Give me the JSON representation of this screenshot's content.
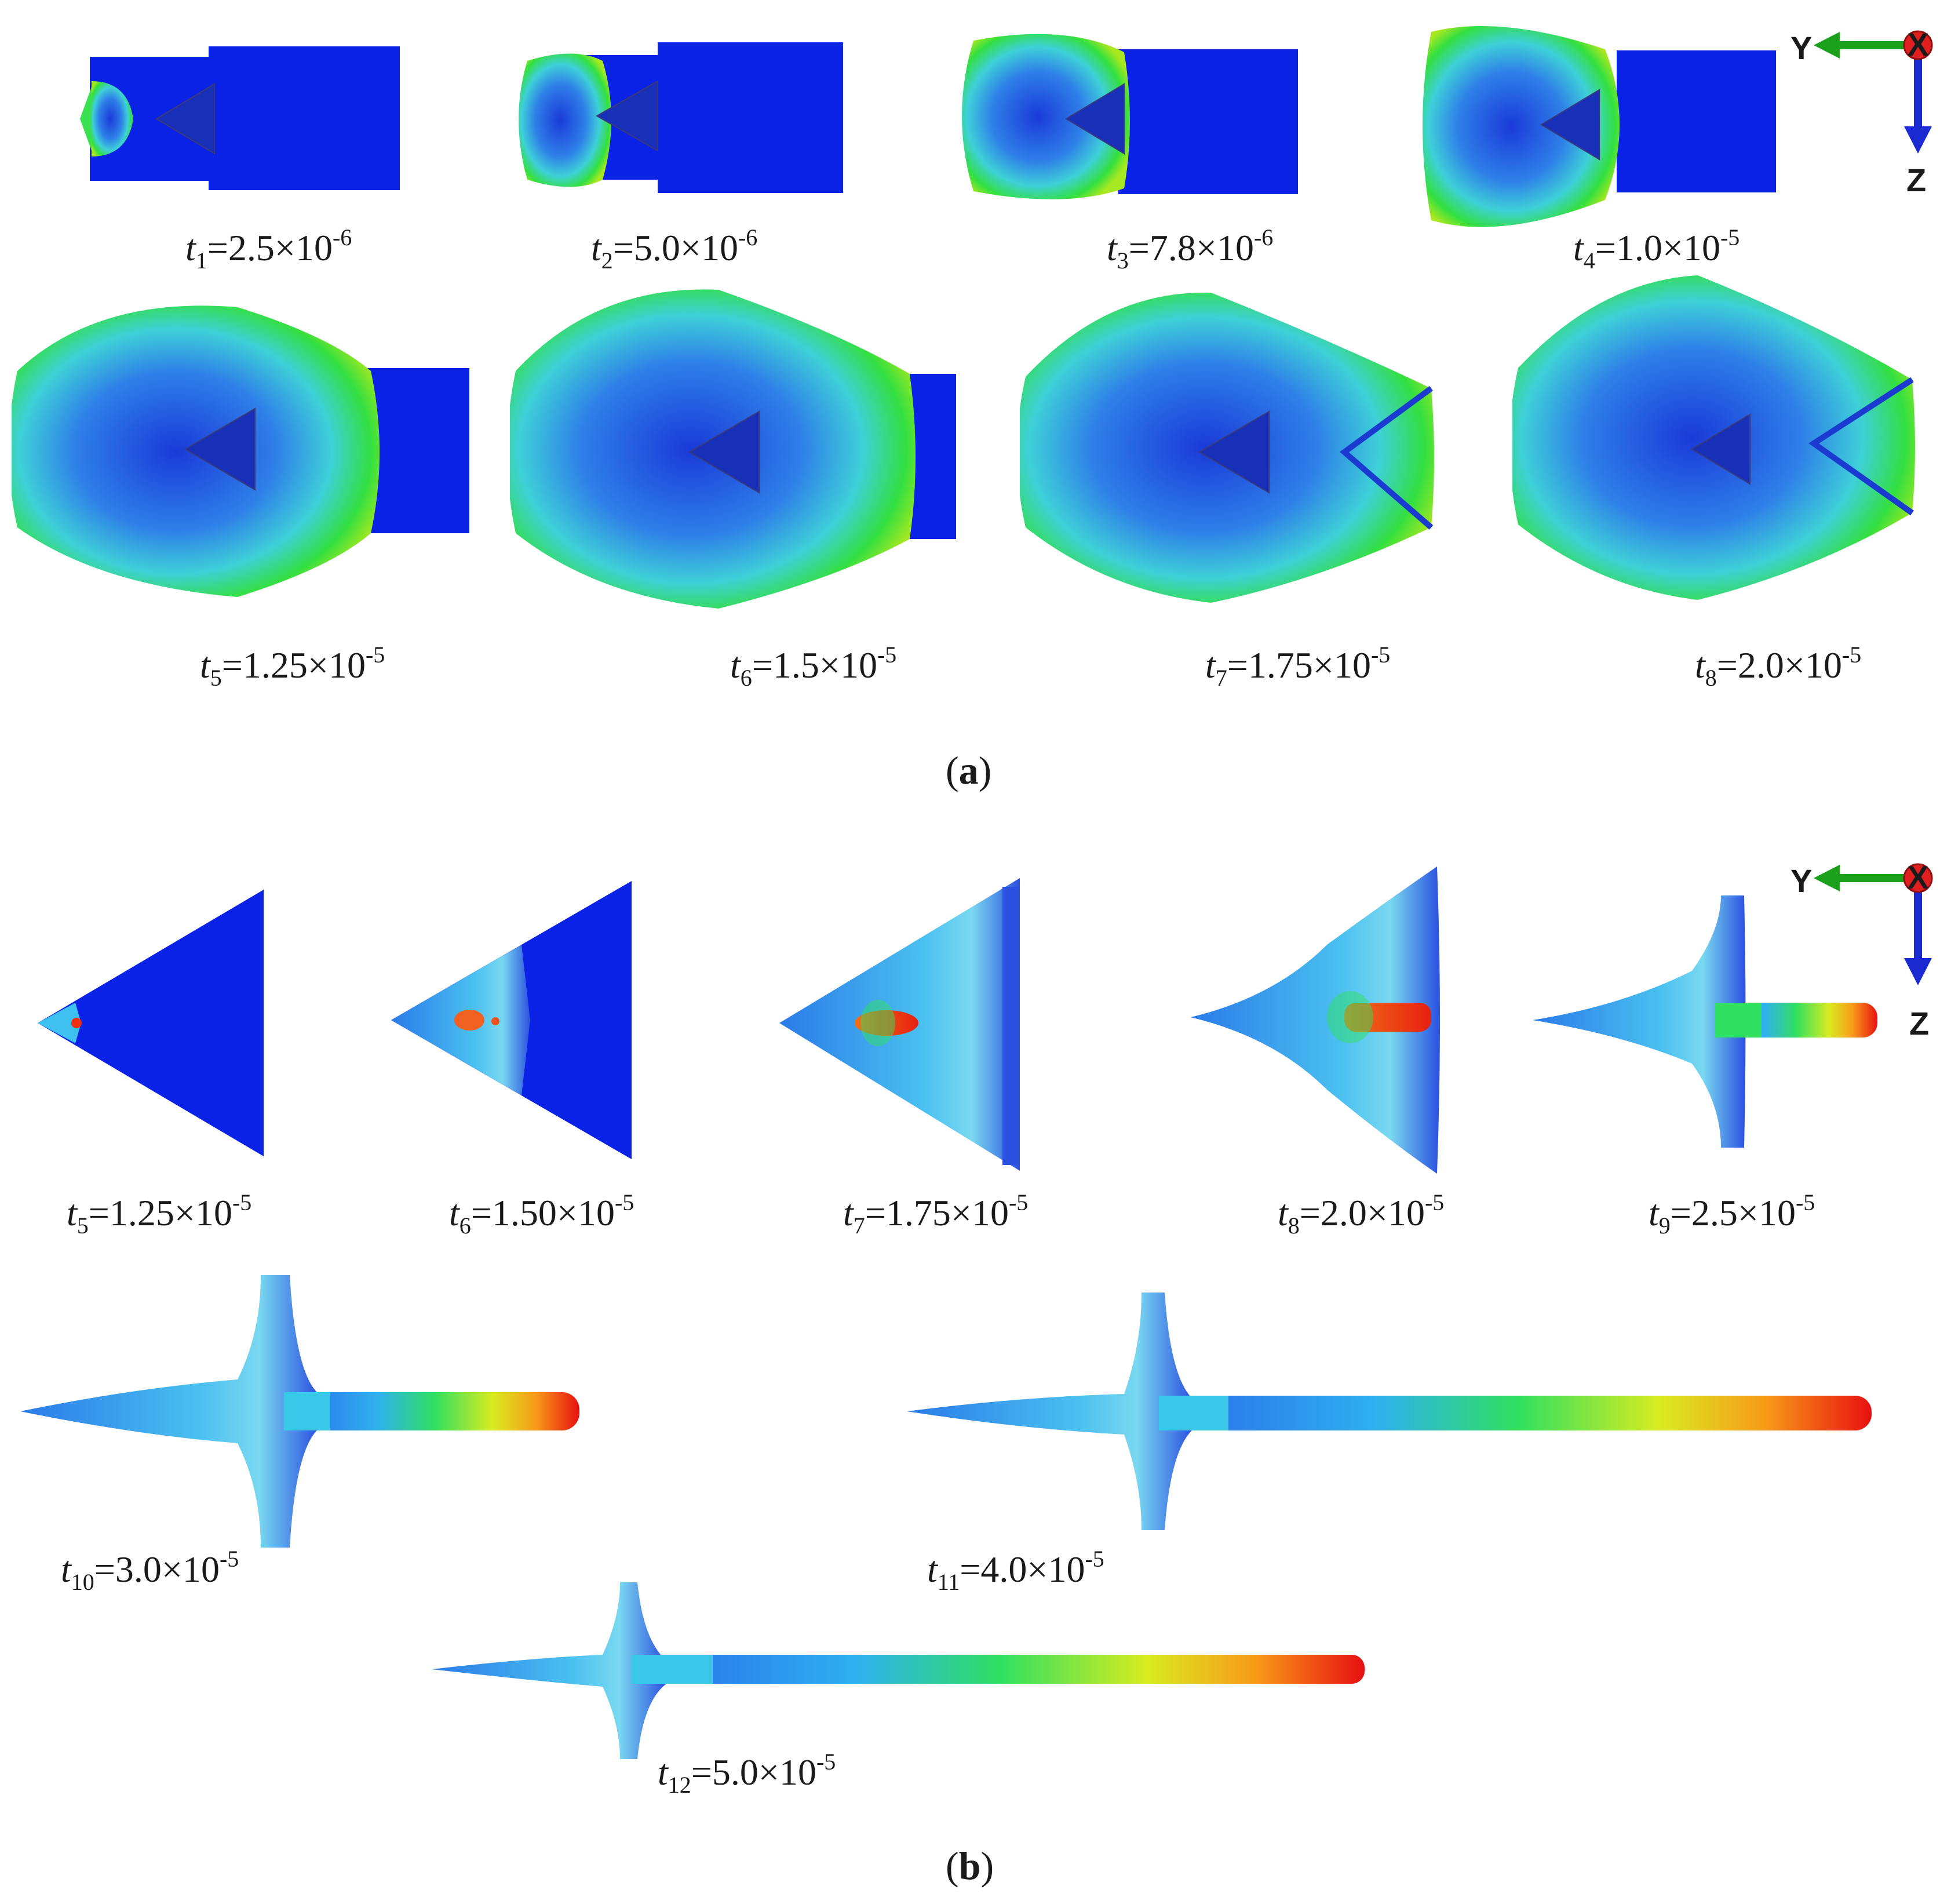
{
  "panels": {
    "a": {
      "label": "a",
      "frames": [
        {
          "t": "t",
          "sub": "1",
          "val": "=2.5×10",
          "exp": "-6"
        },
        {
          "t": "t",
          "sub": "2",
          "val": "=5.0×10",
          "exp": "-6"
        },
        {
          "t": "t",
          "sub": "3",
          "val": "=7.8×10",
          "exp": "-6"
        },
        {
          "t": "t",
          "sub": "4",
          "val": "=1.0×10",
          "exp": "-5"
        },
        {
          "t": "t",
          "sub": "5",
          "val": "=1.25×10",
          "exp": "-5"
        },
        {
          "t": "t",
          "sub": "6",
          "val": "=1.5×10",
          "exp": "-5"
        },
        {
          "t": "t",
          "sub": "7",
          "val": "=1.75×10",
          "exp": "-5"
        },
        {
          "t": "t",
          "sub": "8",
          "val": "=2.0×10",
          "exp": "-5"
        }
      ]
    },
    "b": {
      "label": "b",
      "frames": [
        {
          "t": "t",
          "sub": "5",
          "val": "=1.25×10",
          "exp": "-5"
        },
        {
          "t": "t",
          "sub": "6",
          "val": "=1.50×10",
          "exp": "-5"
        },
        {
          "t": "t",
          "sub": "7",
          "val": "=1.75×10",
          "exp": "-5"
        },
        {
          "t": "t",
          "sub": "8",
          "val": "=2.0×10",
          "exp": "-5"
        },
        {
          "t": "t",
          "sub": "9",
          "val": "=2.5×10",
          "exp": "-5"
        },
        {
          "t": "t",
          "sub": "10",
          "val": "=3.0×10",
          "exp": "-5"
        },
        {
          "t": "t",
          "sub": "11",
          "val": "=4.0×10",
          "exp": "-5"
        },
        {
          "t": "t",
          "sub": "12",
          "val": "=5.0×10",
          "exp": "-5"
        }
      ]
    }
  },
  "axes": {
    "y": "Y",
    "z": "Z",
    "x": "X"
  },
  "colors": {
    "blue": "#0a1ee6",
    "cyan": "#30c8f0",
    "green": "#20e020",
    "yellow": "#f0f020",
    "red": "#e81010",
    "axis_green": "#1aa01a",
    "axis_blue": "#1a2ad0",
    "axis_red": "#e02020"
  }
}
